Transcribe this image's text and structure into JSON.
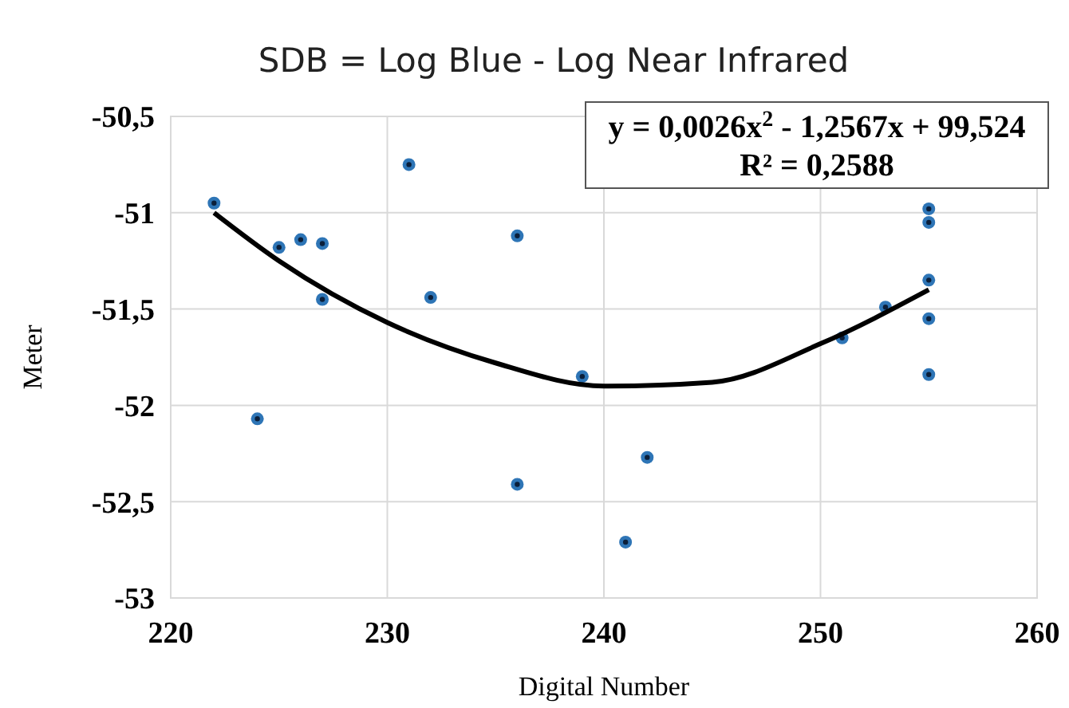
{
  "chart_data": {
    "type": "scatter",
    "title": "SDB = Log Blue - Log Near Infrared",
    "xlabel": "Digital Number",
    "ylabel": "Meter",
    "xlim": [
      220,
      260
    ],
    "xticks": [
      220,
      230,
      240,
      250,
      260
    ],
    "ylim": [
      -53,
      -50.5
    ],
    "yticks": [
      {
        "value": -53,
        "label": "-53"
      },
      {
        "value": -52.5,
        "label": "-52,5"
      },
      {
        "value": -52,
        "label": "-52"
      },
      {
        "value": -51.5,
        "label": "-51,5"
      },
      {
        "value": -51,
        "label": "-51"
      },
      {
        "value": -50.5,
        "label": "-50,5"
      }
    ],
    "grid": true,
    "series": [
      {
        "color": "#2e75b6",
        "marker": "circle",
        "x": [
          222,
          224,
          225,
          226,
          227,
          227,
          231,
          232,
          236,
          236,
          239,
          241,
          242,
          251,
          253,
          255,
          255,
          255,
          255,
          255
        ],
        "values": [
          -50.95,
          -52.07,
          -51.18,
          -51.14,
          -51.16,
          -51.45,
          -50.75,
          -51.44,
          -51.12,
          -52.41,
          -51.85,
          -52.71,
          -52.27,
          -51.65,
          -51.49,
          -50.98,
          -51.05,
          -51.35,
          -51.55,
          -51.84
        ]
      },
      {
        "type": "line",
        "color": "#000000",
        "line_style": "solid",
        "x": [
          222,
          225,
          230,
          235,
          240,
          245,
          250,
          255
        ],
        "values": [
          -51.0,
          -51.25,
          -51.57,
          -51.78,
          -51.9,
          -51.88,
          -51.68,
          -51.4
        ]
      }
    ],
    "annotations": [
      "y = 0,0026x$^{2}$ - 1,2567x + 99,524",
      "R² = 0,2588"
    ]
  }
}
